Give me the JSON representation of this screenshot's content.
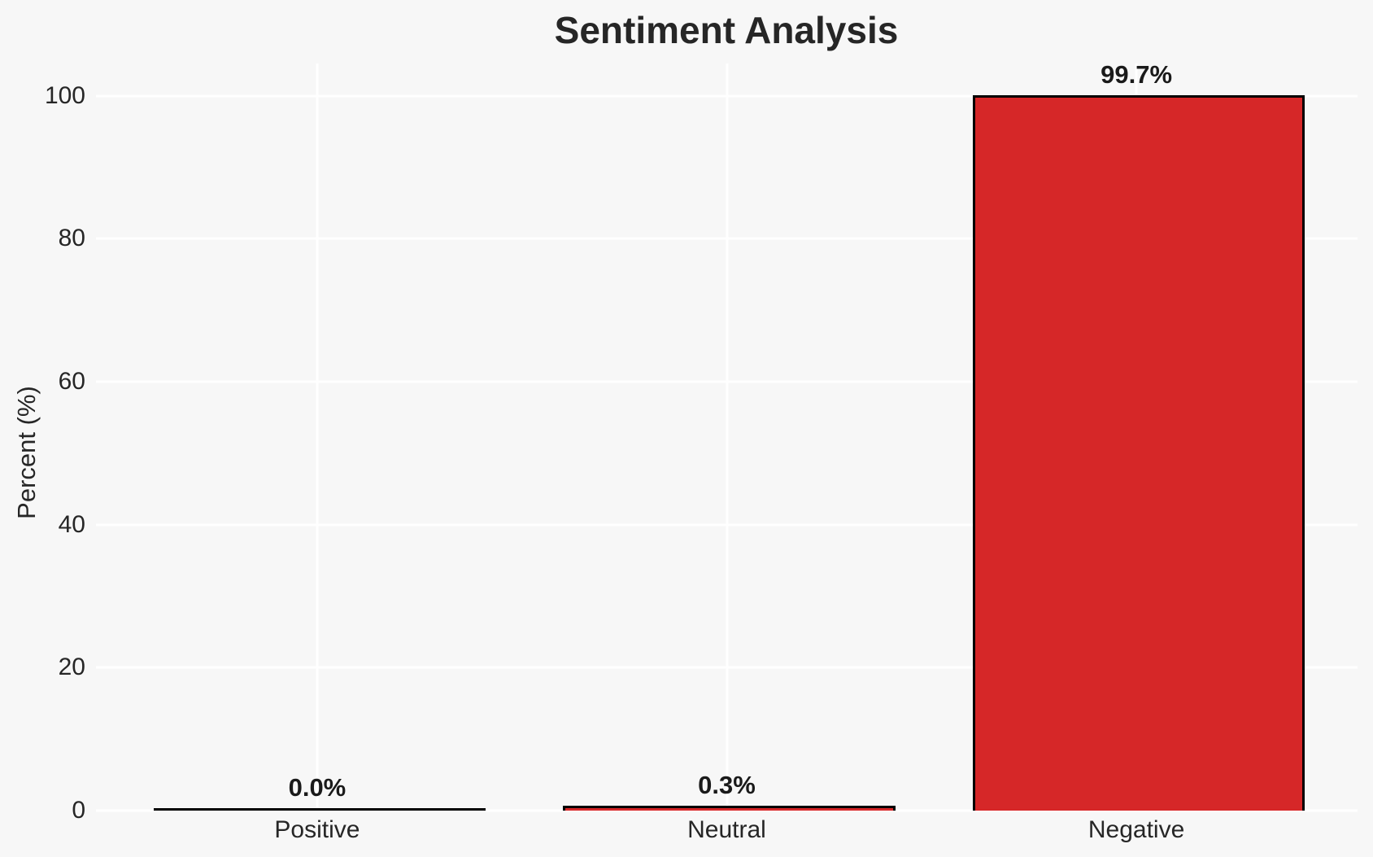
{
  "chart_data": {
    "type": "bar",
    "title": "Sentiment Analysis",
    "categories": [
      "Positive",
      "Neutral",
      "Negative"
    ],
    "values": [
      0.0,
      0.3,
      99.7
    ],
    "value_labels": [
      "0.0%",
      "0.3%",
      "99.7%"
    ],
    "xlabel": "",
    "ylabel": "Percent (%)",
    "yticks": [
      0,
      20,
      40,
      60,
      80,
      100
    ],
    "ytick_labels": [
      "0",
      "20",
      "40",
      "60",
      "80",
      "100"
    ],
    "ylim": [
      0,
      104.5
    ],
    "xlim": [
      -0.54,
      2.54
    ],
    "bar_width": 0.8,
    "grid": true,
    "legend_position": "none",
    "colors": {
      "bar_fill": "#d62728",
      "bar_edge": "#000000",
      "background": "#f7f7f7",
      "gridline": "#ffffff",
      "text": "#262626",
      "value_label_text": "#1a1a1a"
    }
  }
}
